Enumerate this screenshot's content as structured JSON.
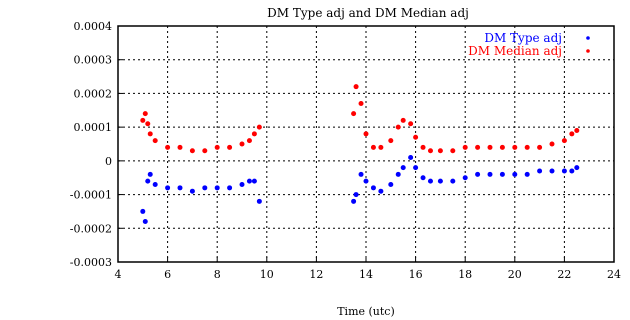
{
  "chart_data": {
    "type": "scatter",
    "title": "DM Type adj and DM Median adj",
    "xlabel": "Time (utc)",
    "ylabel": "",
    "xlim": [
      4,
      24
    ],
    "ylim": [
      -0.0003,
      0.0004
    ],
    "x_ticks": [
      4,
      6,
      8,
      10,
      12,
      14,
      16,
      18,
      20,
      22,
      24
    ],
    "y_ticks": [
      -0.0003,
      -0.0002,
      -0.0001,
      0,
      0.0001,
      0.0002,
      0.0003,
      0.0004
    ],
    "x_tick_labels": [
      "4",
      "6",
      "8",
      "10",
      "12",
      "14",
      "16",
      "18",
      "20",
      "22",
      "24"
    ],
    "y_tick_labels": [
      "-0.0003",
      "-0.0002",
      "-0.0001",
      "0",
      "0.0001",
      "0.0002",
      "0.0003",
      "0.0004"
    ],
    "grid": true,
    "legend_position": "top-right",
    "series": [
      {
        "name": "DM Type adj",
        "color": "#0000ff",
        "segments": [
          {
            "x": [
              5.0,
              5.1,
              5.2,
              5.3,
              5.5,
              6.0,
              6.5,
              7.0,
              7.5,
              8.0,
              8.5,
              9.0,
              9.3,
              9.5,
              9.7
            ],
            "y": [
              -0.00015,
              -0.00018,
              -6e-05,
              -4e-05,
              -7e-05,
              -8e-05,
              -8e-05,
              -9e-05,
              -8e-05,
              -8e-05,
              -8e-05,
              -7e-05,
              -6e-05,
              -6e-05,
              -0.00012
            ]
          },
          {
            "x": [
              13.5,
              13.6,
              13.8,
              14.0,
              14.3,
              14.6,
              15.0,
              15.3,
              15.5,
              15.8,
              16.0,
              16.3,
              16.6,
              17.0,
              17.5,
              18.0,
              18.5,
              19.0,
              19.5,
              20.0,
              20.5,
              21.0,
              21.5,
              22.0,
              22.3,
              22.5
            ],
            "y": [
              -0.00012,
              -0.0001,
              -4e-05,
              -6e-05,
              -8e-05,
              -9e-05,
              -7e-05,
              -4e-05,
              -2e-05,
              1e-05,
              -2e-05,
              -5e-05,
              -6e-05,
              -6e-05,
              -6e-05,
              -5e-05,
              -4e-05,
              -4e-05,
              -4e-05,
              -4e-05,
              -4e-05,
              -3e-05,
              -3e-05,
              -3e-05,
              -3e-05,
              -2e-05
            ]
          }
        ]
      },
      {
        "name": "DM Median adj",
        "color": "#ff0000",
        "segments": [
          {
            "x": [
              5.0,
              5.1,
              5.2,
              5.3,
              5.5,
              6.0,
              6.5,
              7.0,
              7.5,
              8.0,
              8.5,
              9.0,
              9.3,
              9.5,
              9.7
            ],
            "y": [
              0.00012,
              0.00014,
              0.00011,
              8e-05,
              6e-05,
              4e-05,
              4e-05,
              3e-05,
              3e-05,
              4e-05,
              4e-05,
              5e-05,
              6e-05,
              8e-05,
              0.0001
            ]
          },
          {
            "x": [
              13.5,
              13.6,
              13.8,
              14.0,
              14.3,
              14.6,
              15.0,
              15.3,
              15.5,
              15.8,
              16.0,
              16.3,
              16.6,
              17.0,
              17.5,
              18.0,
              18.5,
              19.0,
              19.5,
              20.0,
              20.5,
              21.0,
              21.5,
              22.0,
              22.3,
              22.5
            ],
            "y": [
              0.00014,
              0.00022,
              0.00017,
              8e-05,
              4e-05,
              4e-05,
              6e-05,
              0.0001,
              0.00012,
              0.00011,
              7e-05,
              4e-05,
              3e-05,
              3e-05,
              3e-05,
              4e-05,
              4e-05,
              4e-05,
              4e-05,
              4e-05,
              4e-05,
              4e-05,
              5e-05,
              6e-05,
              8e-05,
              9e-05
            ]
          }
        ]
      }
    ]
  }
}
